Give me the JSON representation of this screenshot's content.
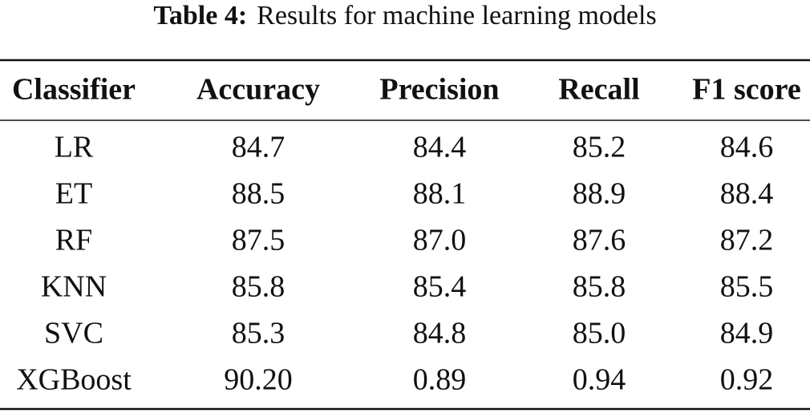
{
  "caption": {
    "label": "Table 4:",
    "text": "Results for machine learning models"
  },
  "table": {
    "header": [
      "Classifier",
      "Accuracy",
      "Precision",
      "Recall",
      "F1 score"
    ],
    "rows": [
      [
        "LR",
        "84.7",
        "84.4",
        "85.2",
        "84.6"
      ],
      [
        "ET",
        "88.5",
        "88.1",
        "88.9",
        "88.4"
      ],
      [
        "RF",
        "87.5",
        "87.0",
        "87.6",
        "87.2"
      ],
      [
        "KNN",
        "85.8",
        "85.4",
        "85.8",
        "85.5"
      ],
      [
        "SVC",
        "85.3",
        "84.8",
        "85.0",
        "84.9"
      ],
      [
        "XGBoost",
        "90.20",
        "0.89",
        "0.94",
        "0.92"
      ]
    ]
  }
}
